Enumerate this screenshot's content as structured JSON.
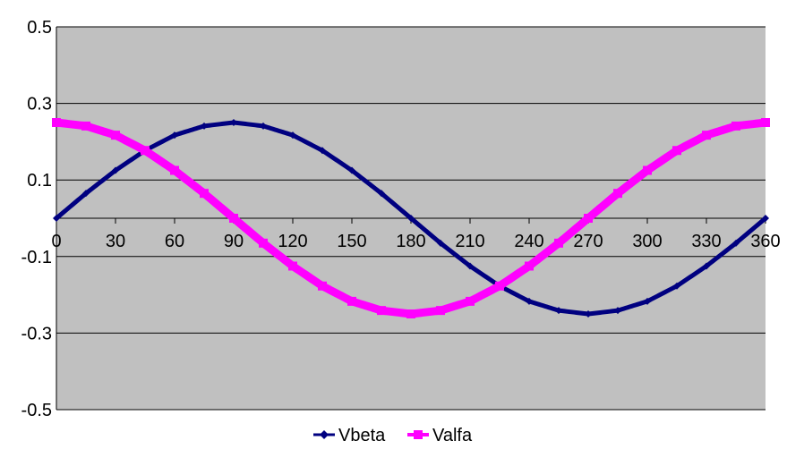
{
  "chart_data": {
    "type": "line",
    "title": "",
    "xlabel": "",
    "ylabel": "",
    "xlim": [
      0,
      360
    ],
    "ylim": [
      -0.5,
      0.5
    ],
    "x_ticks": [
      "0",
      "30",
      "60",
      "90",
      "120",
      "150",
      "180",
      "210",
      "240",
      "270",
      "300",
      "330",
      "360"
    ],
    "y_ticks": [
      "0.5",
      "0.3",
      "0.1",
      "-0.1",
      "-0.3",
      "-0.5"
    ],
    "grid": true,
    "legend_position": "bottom",
    "plot_background": "#C0C0C0",
    "x": [
      0,
      15,
      30,
      45,
      60,
      75,
      90,
      105,
      120,
      135,
      150,
      165,
      180,
      195,
      210,
      225,
      240,
      255,
      270,
      285,
      300,
      315,
      330,
      345,
      360
    ],
    "series": [
      {
        "name": "Vbeta",
        "color": "#000080",
        "marker": "diamond",
        "values": [
          0,
          0.065,
          0.125,
          0.177,
          0.217,
          0.241,
          0.25,
          0.241,
          0.217,
          0.177,
          0.125,
          0.065,
          0,
          -0.065,
          -0.125,
          -0.177,
          -0.217,
          -0.241,
          -0.25,
          -0.241,
          -0.217,
          -0.177,
          -0.125,
          -0.065,
          0
        ]
      },
      {
        "name": "Valfa",
        "color": "#FF00FF",
        "marker": "square",
        "values": [
          0.25,
          0.241,
          0.217,
          0.177,
          0.125,
          0.065,
          0,
          -0.065,
          -0.125,
          -0.177,
          -0.217,
          -0.241,
          -0.25,
          -0.241,
          -0.217,
          -0.177,
          -0.125,
          -0.065,
          0,
          0.065,
          0.125,
          0.177,
          0.217,
          0.241,
          0.25
        ]
      }
    ]
  }
}
